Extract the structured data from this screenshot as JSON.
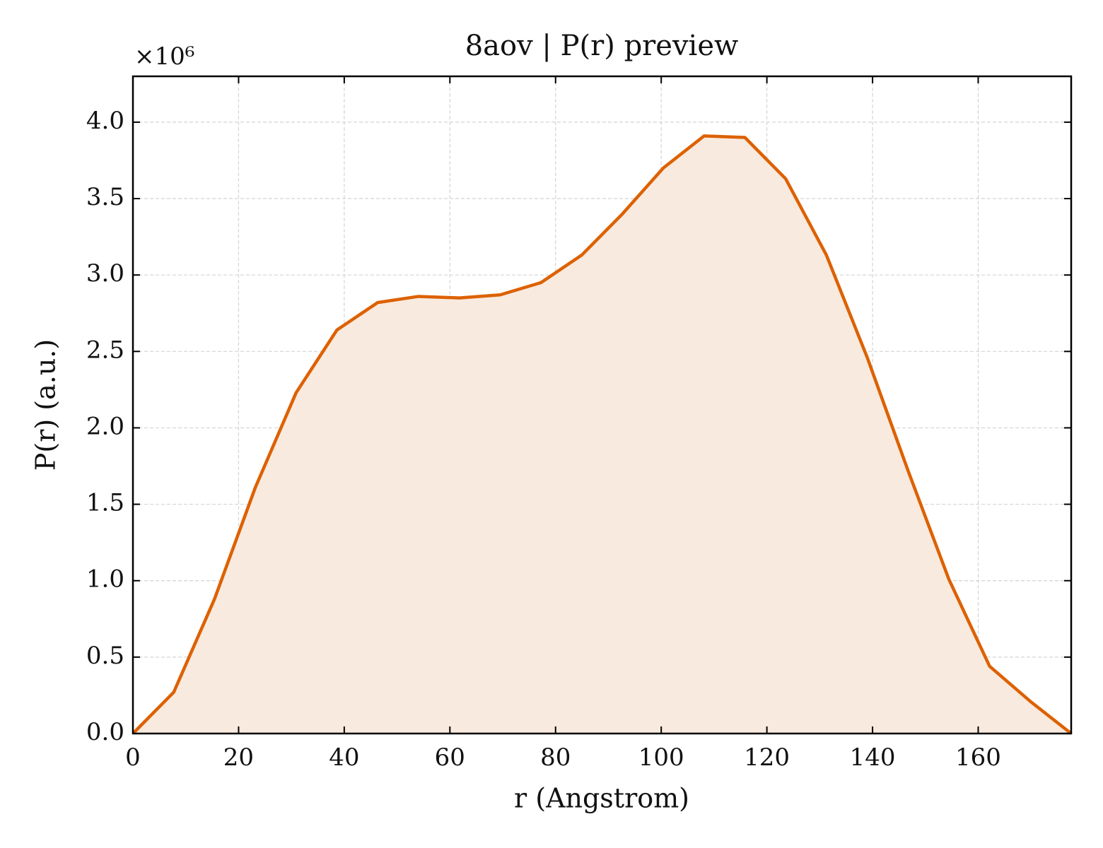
{
  "chart_data": {
    "type": "area-line",
    "title": "8aov | P(r) preview",
    "x_label": "r (Angstrom)",
    "y_label": "P(r) (a.u.)",
    "y_offset_text": "×10⁶",
    "x": [
      0,
      7.72,
      15.44,
      23.17,
      30.89,
      38.61,
      46.33,
      54.05,
      61.78,
      69.5,
      77.22,
      84.94,
      92.66,
      100.39,
      108.11,
      115.83,
      123.55,
      131.27,
      139.0,
      146.72,
      154.44,
      162.16,
      169.88,
      177.6
    ],
    "values": [
      0,
      0.27,
      0.88,
      1.61,
      2.23,
      2.64,
      2.82,
      2.86,
      2.85,
      2.87,
      2.95,
      3.13,
      3.4,
      3.7,
      3.91,
      3.9,
      3.63,
      3.13,
      2.46,
      1.72,
      1.01,
      0.44,
      0.21,
      0
    ],
    "color": "#dd6100",
    "fill_color": "#f8eadf",
    "xlim": [
      0,
      177.6
    ],
    "ylim": [
      0,
      4.3
    ],
    "xticks": [
      0,
      20,
      40,
      60,
      80,
      100,
      120,
      140,
      160
    ],
    "yticks": [
      {
        "value": 0,
        "label": "0.0"
      },
      {
        "value": 0.5,
        "label": "0.5"
      },
      {
        "value": 1,
        "label": "1.0"
      },
      {
        "value": 1.5,
        "label": "1.5"
      },
      {
        "value": 2,
        "label": "2.0"
      },
      {
        "value": 2.5,
        "label": "2.5"
      },
      {
        "value": 3,
        "label": "3.0"
      },
      {
        "value": 3.5,
        "label": "3.5"
      },
      {
        "value": 4,
        "label": "4.0"
      }
    ],
    "grid": true
  }
}
